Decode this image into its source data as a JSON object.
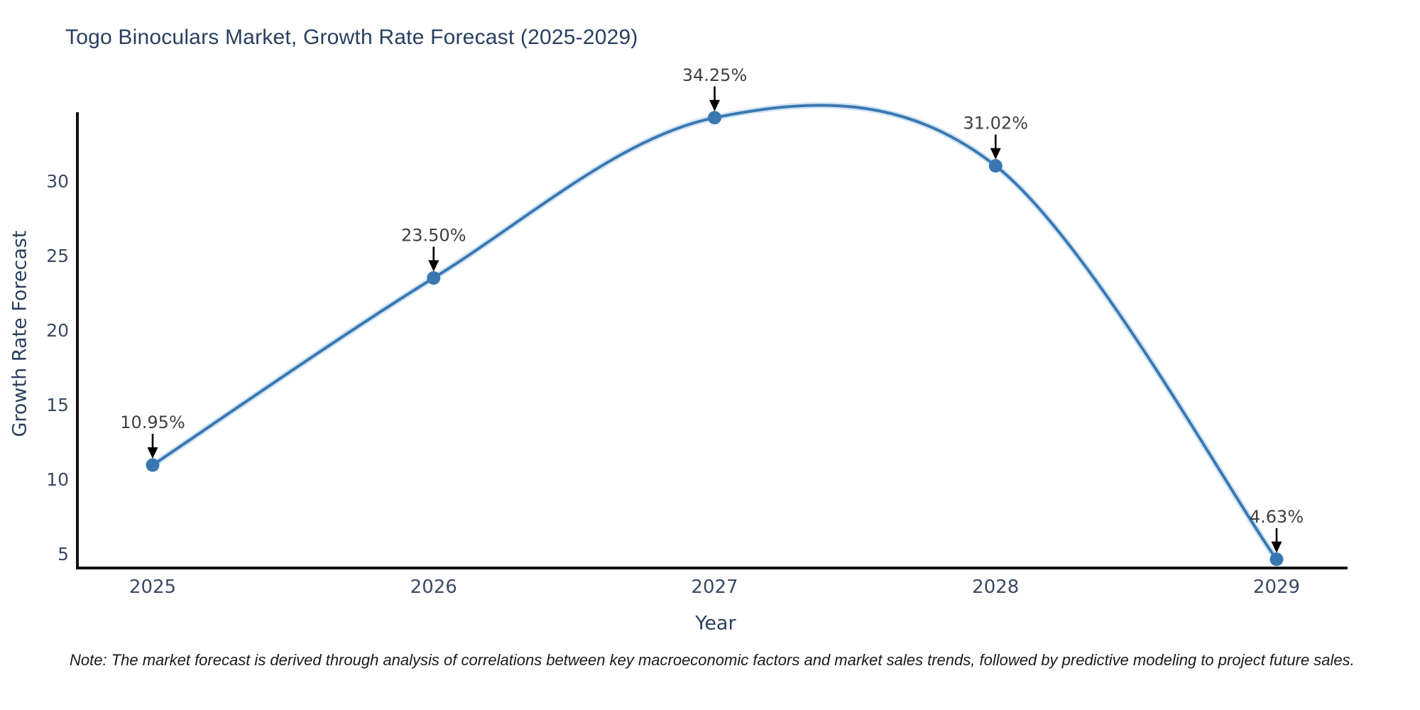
{
  "title": "Togo Binoculars Market, Growth Rate Forecast (2025-2029)",
  "note": "Note: The market forecast is derived through analysis of correlations between key macroeconomic factors and market sales trends, followed by predictive modeling to project future sales.",
  "colors": {
    "line": "#3a78b2",
    "marker": "#3a77b0",
    "line_glow": "#b6d3ec",
    "axis": "#111111",
    "tick_label": "#3b4a63",
    "axis_title": "#2a3f5f",
    "title": "#2a3f5f",
    "annotation_text": "#3f3f3f",
    "annotation_arrow": "#000000",
    "background": "#ffffff"
  },
  "chart_data": {
    "type": "line",
    "title": "Togo Binoculars Market, Growth Rate Forecast (2025-2029)",
    "xlabel": "Year",
    "ylabel": "Growth Rate Forecast",
    "x": [
      2025,
      2026,
      2027,
      2028,
      2029
    ],
    "y": [
      10.95,
      23.5,
      34.25,
      31.02,
      4.63
    ],
    "point_labels": [
      "10.95%",
      "23.50%",
      "34.25%",
      "31.02%",
      "4.63%"
    ],
    "yticks": [
      5,
      10,
      15,
      20,
      25,
      30
    ],
    "ylim": [
      4.05,
      34.6
    ],
    "line_shape": "spline",
    "markers": true,
    "grid": false,
    "legend": null,
    "annotations": "each point labeled with percent value and a black arrow pointing down at the marker"
  }
}
